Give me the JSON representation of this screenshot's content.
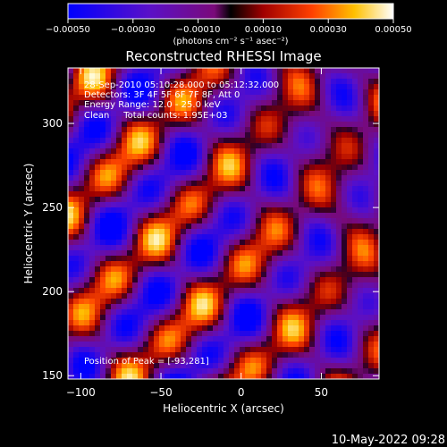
{
  "chart_data": {
    "type": "heatmap",
    "title": "Reconstructed RHESSI Image",
    "xlabel": "Heliocentric X (arcsec)",
    "ylabel": "Heliocentric Y (arcsec)",
    "xlim": [
      -108,
      86
    ],
    "ylim": [
      148,
      333
    ],
    "x_ticks": [
      -100,
      -50,
      0,
      50
    ],
    "y_ticks": [
      150,
      200,
      250,
      300
    ],
    "x_tick_labels": [
      "−100",
      "−50",
      "0",
      "50"
    ],
    "y_tick_labels": [
      "150",
      "200",
      "250",
      "300"
    ],
    "colorbar": {
      "range": [
        -0.0005,
        0.0005
      ],
      "tick_labels": [
        "−0.00050",
        "−0.00030",
        "−0.00010",
        "0.00010",
        "0.00030",
        "0.00050"
      ],
      "ticks": [
        -0.0005,
        -0.0003,
        -0.0001,
        0.0001,
        0.0003,
        0.0005
      ],
      "unit_label": "(photons cm⁻² s⁻¹ asec⁻²)",
      "colormap": "rhessi-blue-purple-red-yellow-white"
    },
    "annotations": [
      "28-Sep-2010 05:10:28.000 to 05:12:32.000",
      "Detectors: 3F 4F 5F 6F 7F 8F, Att 0",
      "Energy Range: 12.0 - 25.0 keV",
      "Clean     Total counts: 1.95E+03"
    ],
    "peak_label": "Position of Peak = [-93,281]",
    "peak_position": [
      -93,
      281
    ]
  },
  "footer": {
    "timestamp": "10-May-2022 09:28"
  },
  "colors": {
    "background": "#000000",
    "foreground": "#ffffff"
  }
}
